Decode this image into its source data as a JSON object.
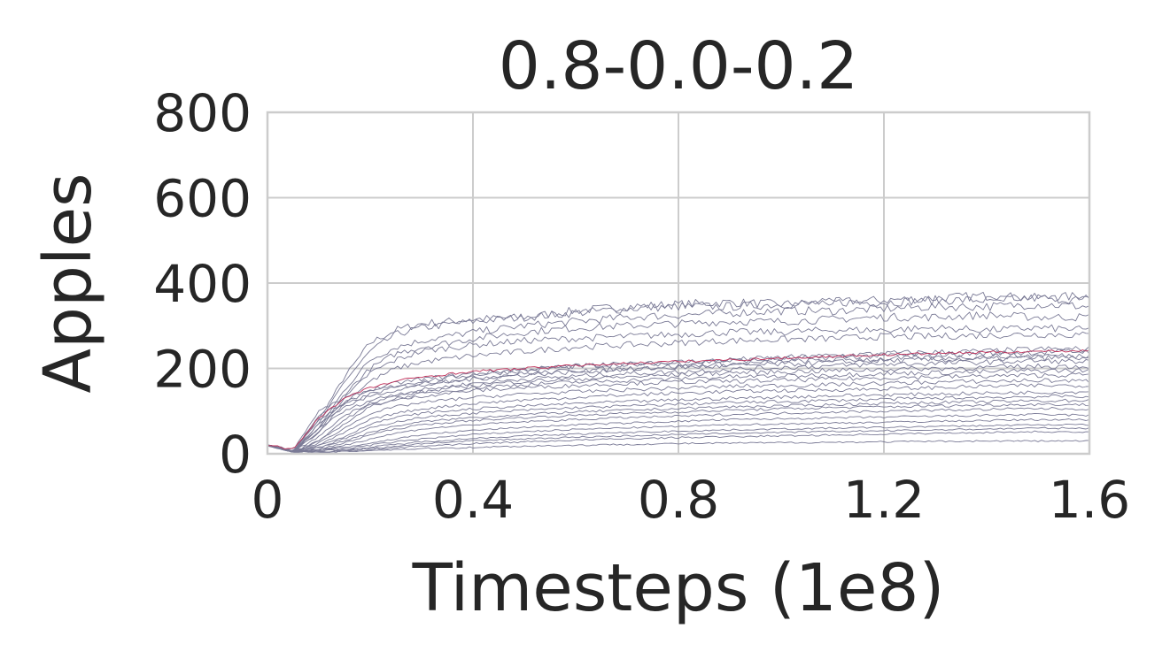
{
  "chart_data": {
    "type": "line",
    "title": "0.8-0.0-0.2",
    "xlabel": "Timesteps (1e8)",
    "ylabel": "Apples",
    "xlim": [
      0,
      1.6
    ],
    "ylim": [
      0,
      800
    ],
    "xticks": [
      0,
      0.4,
      0.8,
      1.2,
      1.6
    ],
    "xtick_labels": [
      "0",
      "0.4",
      "0.8",
      "1.2",
      "1.6"
    ],
    "yticks": [
      0,
      200,
      400,
      600,
      800
    ],
    "ytick_labels": [
      "0",
      "200",
      "400",
      "600",
      "800"
    ],
    "grid": true,
    "legend": "none",
    "line_color": "#7a7a96",
    "mean_color": "#c0305a",
    "x": [
      0,
      0.05,
      0.1,
      0.15,
      0.2,
      0.25,
      0.3,
      0.4,
      0.5,
      0.6,
      0.7,
      0.8,
      0.9,
      1.0,
      1.1,
      1.2,
      1.3,
      1.4,
      1.5,
      1.6
    ],
    "series": [
      {
        "values": [
          20,
          5,
          80,
          180,
          260,
          290,
          305,
          315,
          320,
          335,
          345,
          350,
          355,
          350,
          355,
          360,
          365,
          370,
          365,
          370
        ]
      },
      {
        "values": [
          20,
          5,
          70,
          170,
          240,
          280,
          295,
          310,
          320,
          330,
          340,
          345,
          345,
          350,
          355,
          355,
          360,
          360,
          365,
          360
        ]
      },
      {
        "values": [
          20,
          5,
          60,
          150,
          220,
          250,
          265,
          285,
          300,
          310,
          320,
          325,
          330,
          335,
          335,
          340,
          345,
          345,
          350,
          345
        ]
      },
      {
        "values": [
          20,
          5,
          50,
          140,
          200,
          235,
          250,
          270,
          285,
          295,
          300,
          305,
          310,
          310,
          315,
          320,
          320,
          325,
          320,
          320
        ]
      },
      {
        "values": [
          20,
          5,
          60,
          130,
          190,
          220,
          240,
          255,
          265,
          270,
          275,
          280,
          285,
          285,
          290,
          290,
          295,
          290,
          295,
          290
        ]
      },
      {
        "values": [
          20,
          5,
          50,
          120,
          170,
          200,
          215,
          230,
          240,
          250,
          255,
          260,
          265,
          268,
          270,
          275,
          275,
          278,
          280,
          278
        ]
      },
      {
        "values": [
          20,
          5,
          90,
          120,
          145,
          160,
          170,
          185,
          195,
          205,
          210,
          215,
          220,
          225,
          230,
          235,
          238,
          240,
          245,
          245
        ]
      },
      {
        "values": [
          20,
          10,
          100,
          130,
          150,
          165,
          175,
          188,
          198,
          205,
          210,
          212,
          218,
          222,
          226,
          230,
          232,
          235,
          238,
          240
        ]
      },
      {
        "values": [
          20,
          5,
          80,
          115,
          140,
          155,
          165,
          178,
          188,
          195,
          200,
          205,
          210,
          215,
          220,
          222,
          225,
          228,
          230,
          230
        ]
      },
      {
        "values": [
          20,
          5,
          70,
          110,
          135,
          150,
          160,
          175,
          185,
          192,
          198,
          202,
          206,
          210,
          214,
          218,
          220,
          222,
          225,
          225
        ]
      },
      {
        "values": [
          20,
          5,
          60,
          100,
          125,
          140,
          150,
          165,
          175,
          182,
          188,
          192,
          198,
          202,
          206,
          210,
          212,
          215,
          218,
          215
        ]
      },
      {
        "values": [
          20,
          5,
          40,
          90,
          120,
          135,
          145,
          160,
          170,
          175,
          180,
          185,
          190,
          192,
          195,
          198,
          200,
          202,
          205,
          205
        ]
      },
      {
        "values": [
          20,
          5,
          30,
          70,
          110,
          130,
          140,
          155,
          162,
          168,
          172,
          176,
          180,
          182,
          185,
          188,
          190,
          192,
          195,
          195
        ]
      },
      {
        "values": [
          20,
          5,
          30,
          80,
          115,
          125,
          135,
          148,
          155,
          160,
          165,
          168,
          170,
          172,
          175,
          178,
          180,
          182,
          184,
          185
        ]
      },
      {
        "values": [
          20,
          5,
          25,
          60,
          95,
          110,
          120,
          132,
          140,
          145,
          150,
          154,
          158,
          160,
          162,
          165,
          168,
          170,
          172,
          170
        ]
      },
      {
        "values": [
          20,
          5,
          20,
          50,
          80,
          95,
          105,
          118,
          126,
          132,
          138,
          142,
          146,
          148,
          150,
          152,
          155,
          158,
          160,
          160
        ]
      },
      {
        "values": [
          20,
          5,
          20,
          40,
          70,
          85,
          95,
          105,
          112,
          118,
          122,
          126,
          130,
          133,
          136,
          138,
          140,
          142,
          144,
          145
        ]
      },
      {
        "values": [
          20,
          5,
          15,
          35,
          60,
          75,
          85,
          95,
          102,
          108,
          112,
          116,
          120,
          122,
          125,
          128,
          130,
          132,
          134,
          135
        ]
      },
      {
        "values": [
          20,
          5,
          15,
          30,
          50,
          65,
          75,
          85,
          92,
          98,
          102,
          106,
          110,
          112,
          115,
          118,
          120,
          122,
          124,
          125
        ]
      },
      {
        "values": [
          20,
          5,
          10,
          25,
          45,
          58,
          68,
          78,
          85,
          90,
          95,
          98,
          102,
          105,
          108,
          110,
          112,
          114,
          116,
          115
        ]
      },
      {
        "values": [
          20,
          5,
          10,
          20,
          35,
          48,
          58,
          68,
          75,
          80,
          85,
          88,
          92,
          95,
          98,
          100,
          102,
          104,
          106,
          105
        ]
      },
      {
        "values": [
          20,
          5,
          8,
          15,
          25,
          35,
          45,
          55,
          62,
          68,
          72,
          76,
          80,
          82,
          84,
          86,
          88,
          90,
          92,
          90
        ]
      },
      {
        "values": [
          20,
          5,
          8,
          12,
          20,
          28,
          35,
          45,
          52,
          57,
          61,
          64,
          68,
          70,
          72,
          74,
          76,
          78,
          80,
          80
        ]
      },
      {
        "values": [
          20,
          5,
          6,
          10,
          15,
          22,
          28,
          36,
          42,
          46,
          50,
          53,
          56,
          58,
          60,
          62,
          64,
          66,
          68,
          68
        ]
      },
      {
        "values": [
          20,
          5,
          5,
          8,
          12,
          18,
          24,
          30,
          35,
          39,
          42,
          45,
          48,
          50,
          52,
          54,
          56,
          58,
          60,
          60
        ]
      },
      {
        "values": [
          20,
          5,
          4,
          6,
          10,
          14,
          18,
          24,
          28,
          32,
          35,
          38,
          40,
          42,
          44,
          46,
          48,
          50,
          52,
          50
        ]
      },
      {
        "values": [
          20,
          5,
          3,
          5,
          8,
          10,
          12,
          15,
          18,
          20,
          22,
          24,
          25,
          26,
          27,
          28,
          29,
          30,
          30,
          30
        ]
      },
      {
        "values": [
          20,
          10,
          85,
          130,
          155,
          170,
          180,
          193,
          200,
          207,
          212,
          216,
          220,
          224,
          228,
          232,
          235,
          238,
          240,
          242
        ],
        "mean": true
      }
    ]
  }
}
